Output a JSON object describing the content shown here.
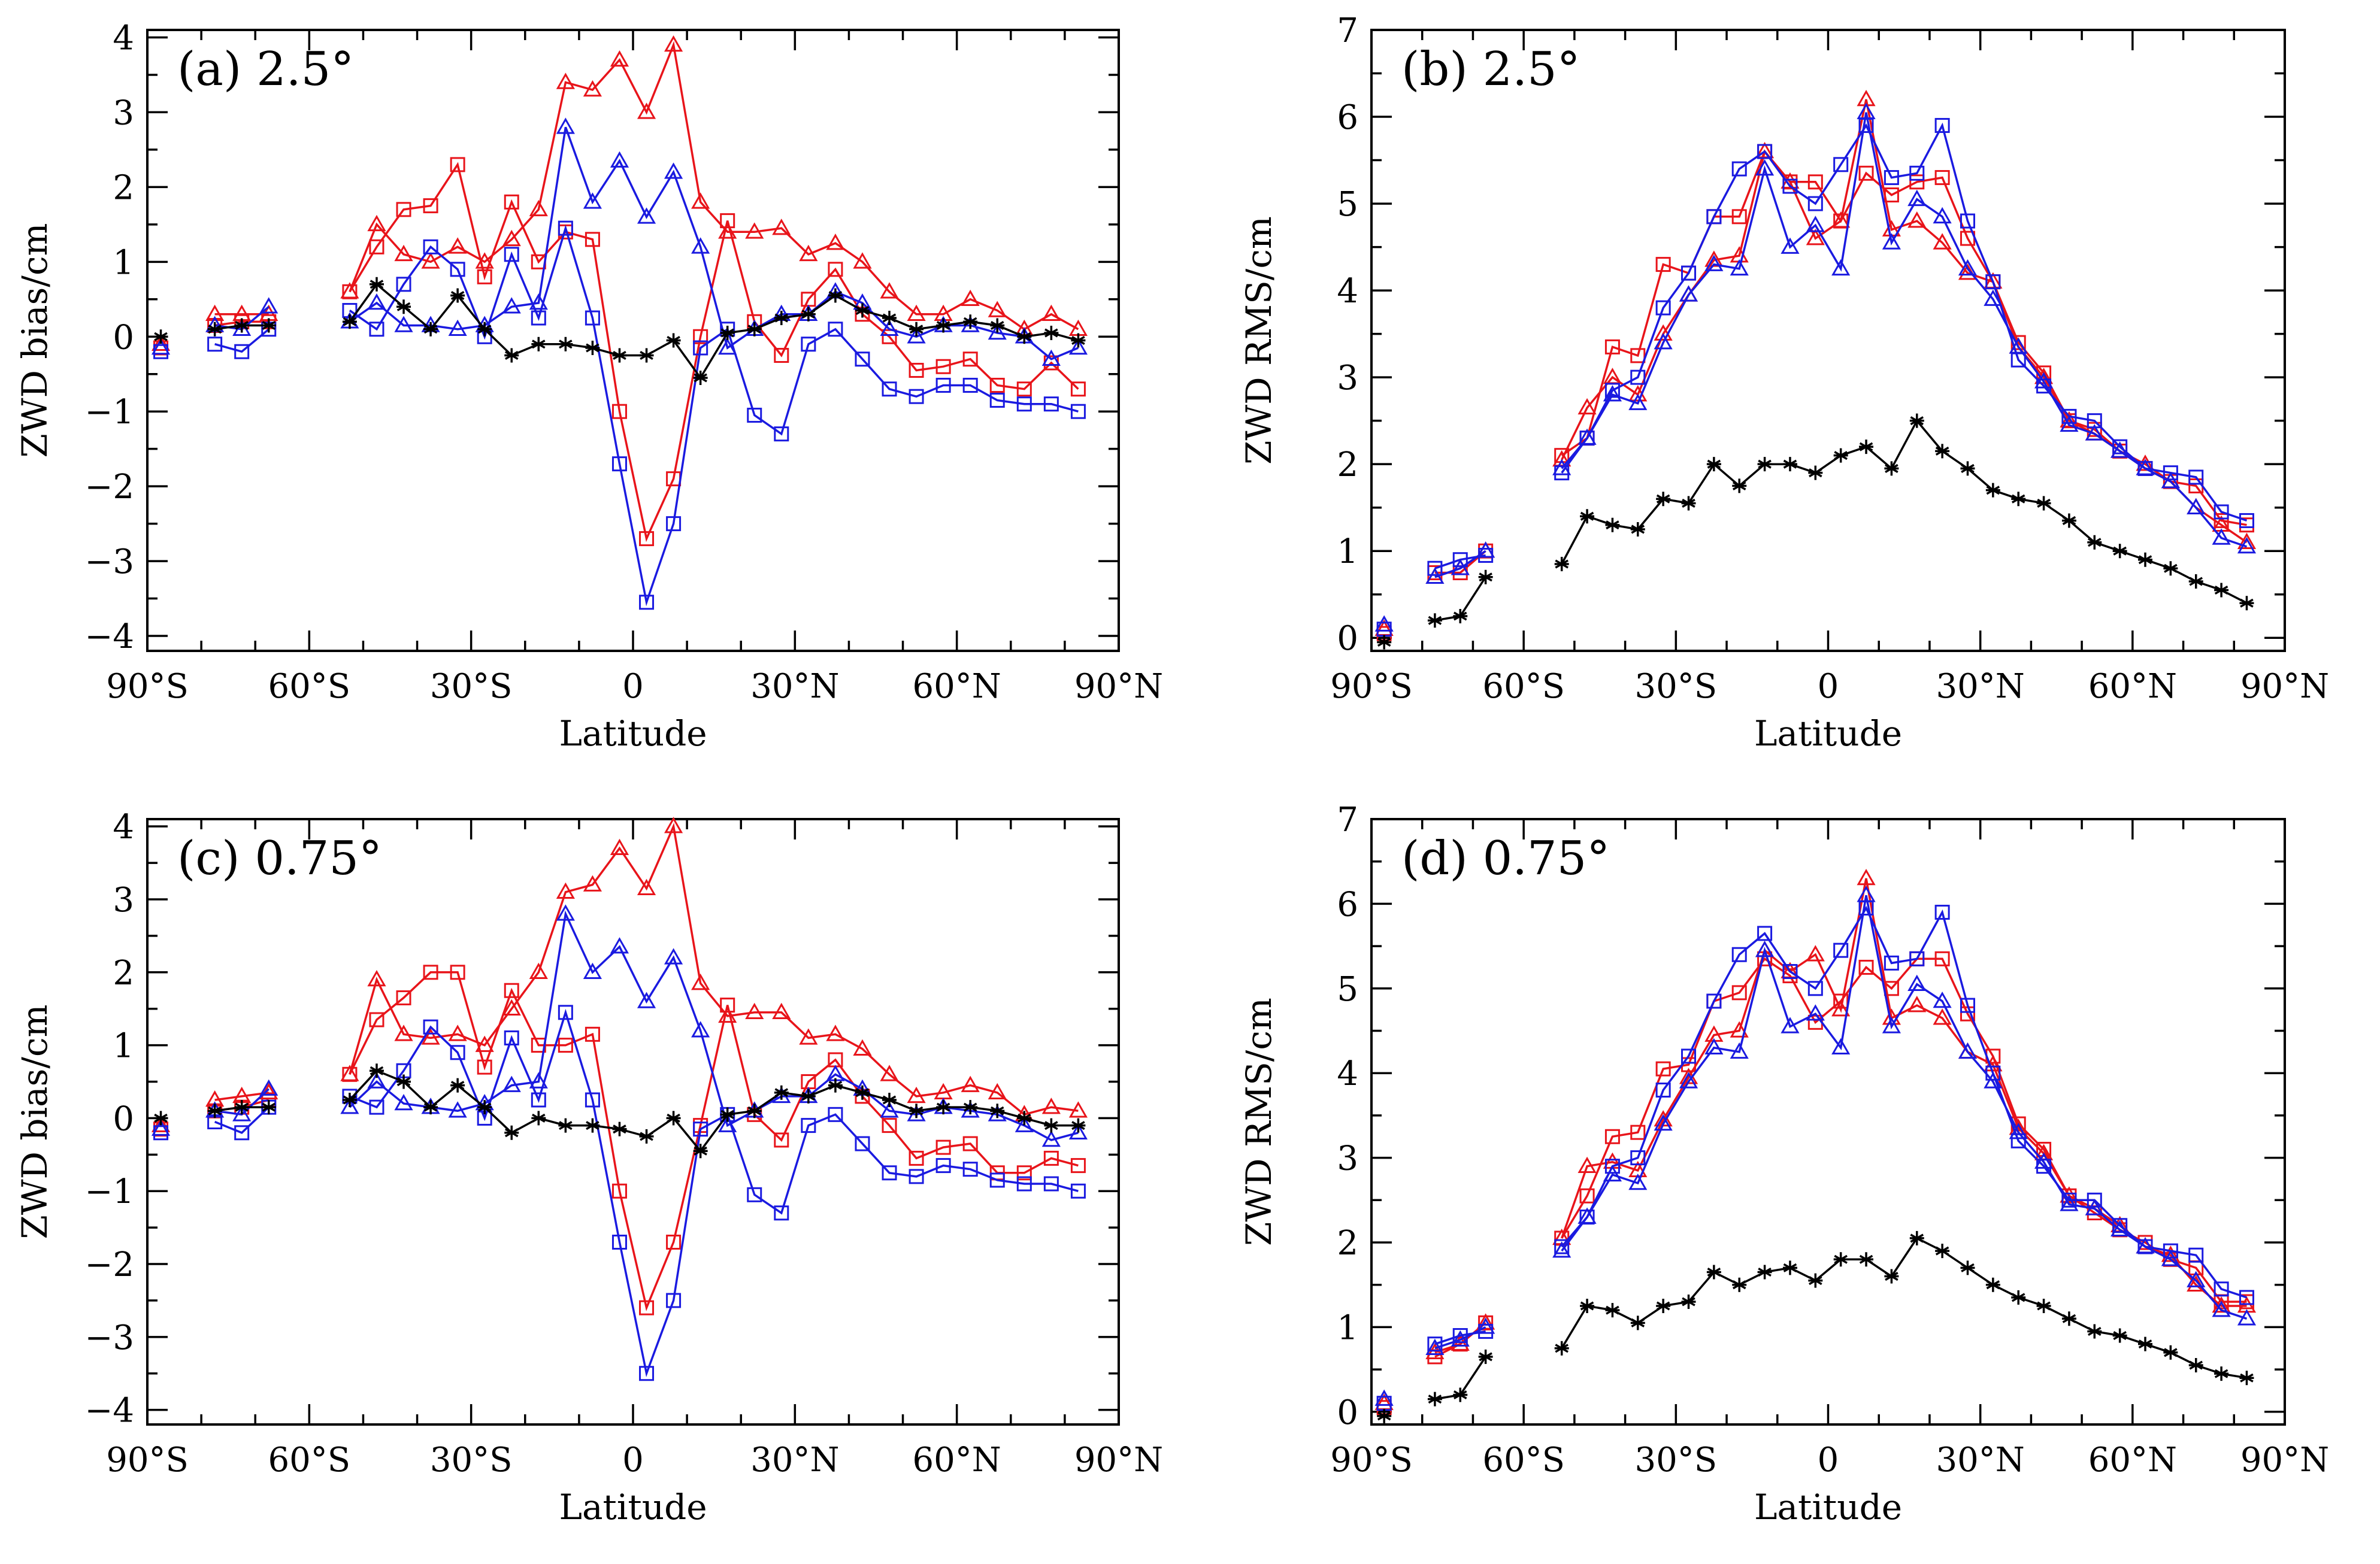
{
  "figure": {
    "colors": {
      "red": "#e8141a",
      "blue": "#1a1ae0",
      "black": "#000000"
    }
  },
  "chart_data": [
    {
      "id": "a",
      "type": "line",
      "title": "(a) 2.5°",
      "xlabel": "Latitude",
      "ylabel": "ZWD bias/cm",
      "xlim": [
        -90,
        90
      ],
      "ylim": [
        -4.2,
        4.1
      ],
      "xticks": [
        -90,
        -60,
        -30,
        0,
        30,
        60,
        90
      ],
      "xtick_labels": [
        "90°S",
        "60°S",
        "30°S",
        "0",
        "30°N",
        "60°N",
        "90°N"
      ],
      "yticks": [
        -4,
        -3,
        -2,
        -1,
        0,
        1,
        2,
        3,
        4
      ],
      "ytick_labels": [
        "−4",
        "−3",
        "−2",
        "−1",
        "0",
        "1",
        "2",
        "3",
        "4"
      ],
      "x": [
        -87.5,
        -77.5,
        -72.5,
        -67.5,
        -52.5,
        -47.5,
        -42.5,
        -37.5,
        -32.5,
        -27.5,
        -22.5,
        -17.5,
        -12.5,
        -7.5,
        -2.5,
        2.5,
        7.5,
        12.5,
        17.5,
        22.5,
        27.5,
        32.5,
        37.5,
        42.5,
        47.5,
        52.5,
        57.5,
        62.5,
        67.5,
        72.5,
        77.5,
        82.5
      ],
      "series": [
        {
          "name": "red-triangle",
          "color": "red",
          "marker": "triangle",
          "values": [
            -0.1,
            0.3,
            0.3,
            0.3,
            0.6,
            1.5,
            1.1,
            1.0,
            1.2,
            1.0,
            1.3,
            1.7,
            3.4,
            3.3,
            3.7,
            3.0,
            3.9,
            1.8,
            1.4,
            1.4,
            1.45,
            1.1,
            1.25,
            1.0,
            0.6,
            0.3,
            0.3,
            0.5,
            0.35,
            0.1,
            0.3,
            0.1
          ]
        },
        {
          "name": "red-square",
          "color": "red",
          "marker": "square",
          "values": [
            -0.15,
            0.15,
            0.2,
            0.2,
            0.6,
            1.2,
            1.7,
            1.75,
            2.3,
            0.8,
            1.8,
            1.0,
            1.4,
            1.3,
            -1.0,
            -2.7,
            -1.9,
            0.0,
            1.55,
            0.2,
            -0.25,
            0.5,
            0.9,
            0.3,
            0.0,
            -0.45,
            -0.4,
            -0.3,
            -0.65,
            -0.7,
            -0.35,
            -0.7
          ]
        },
        {
          "name": "blue-triangle",
          "color": "blue",
          "marker": "triangle",
          "values": [
            -0.15,
            0.15,
            0.1,
            0.4,
            0.2,
            0.45,
            0.15,
            0.15,
            0.1,
            0.15,
            0.4,
            0.45,
            2.8,
            1.8,
            2.35,
            1.6,
            2.2,
            1.2,
            -0.15,
            0.1,
            0.3,
            0.3,
            0.6,
            0.45,
            0.1,
            0.0,
            0.15,
            0.15,
            0.05,
            0.0,
            -0.3,
            -0.15
          ]
        },
        {
          "name": "blue-square",
          "color": "blue",
          "marker": "square",
          "values": [
            -0.2,
            -0.1,
            -0.2,
            0.1,
            0.35,
            0.1,
            0.7,
            1.2,
            0.9,
            0.0,
            1.1,
            0.25,
            1.45,
            0.25,
            -1.7,
            -3.55,
            -2.5,
            -0.15,
            0.1,
            -1.05,
            -1.3,
            -0.1,
            0.1,
            -0.3,
            -0.7,
            -0.8,
            -0.65,
            -0.65,
            -0.85,
            -0.9,
            -0.9,
            -1.0
          ]
        },
        {
          "name": "black-star",
          "color": "black",
          "marker": "star",
          "values": [
            0.0,
            0.1,
            0.15,
            0.15,
            0.2,
            0.7,
            0.4,
            0.1,
            0.55,
            0.1,
            -0.25,
            -0.1,
            -0.1,
            -0.15,
            -0.25,
            -0.25,
            -0.05,
            -0.55,
            0.05,
            0.1,
            0.25,
            0.3,
            0.55,
            0.35,
            0.25,
            0.1,
            0.15,
            0.2,
            0.15,
            0.0,
            0.05,
            -0.05
          ]
        }
      ]
    },
    {
      "id": "b",
      "type": "line",
      "title": "(b) 2.5°",
      "xlabel": "Latitude",
      "ylabel": "ZWD RMS/cm",
      "xlim": [
        -90,
        90
      ],
      "ylim": [
        -0.15,
        7.0
      ],
      "xticks": [
        -90,
        -60,
        -30,
        0,
        30,
        60,
        90
      ],
      "xtick_labels": [
        "90°S",
        "60°S",
        "30°S",
        "0",
        "30°N",
        "60°N",
        "90°N"
      ],
      "yticks": [
        0,
        1,
        2,
        3,
        4,
        5,
        6,
        7
      ],
      "ytick_labels": [
        "0",
        "1",
        "2",
        "3",
        "4",
        "5",
        "6",
        "7"
      ],
      "x": [
        -87.5,
        -77.5,
        -72.5,
        -67.5,
        -52.5,
        -47.5,
        -42.5,
        -37.5,
        -32.5,
        -27.5,
        -22.5,
        -17.5,
        -12.5,
        -7.5,
        -2.5,
        2.5,
        7.5,
        12.5,
        17.5,
        22.5,
        27.5,
        32.5,
        37.5,
        42.5,
        47.5,
        52.5,
        57.5,
        62.5,
        67.5,
        72.5,
        77.5,
        82.5
      ],
      "series": [
        {
          "name": "red-triangle",
          "color": "red",
          "marker": "triangle",
          "values": [
            0.1,
            0.7,
            0.8,
            1.0,
            2.05,
            2.65,
            3.0,
            2.8,
            3.5,
            3.95,
            4.35,
            4.4,
            5.6,
            5.25,
            4.6,
            4.8,
            6.2,
            4.7,
            4.8,
            4.55,
            4.2,
            4.1,
            3.35,
            3.0,
            2.5,
            2.35,
            2.15,
            2.0,
            1.8,
            1.5,
            1.3,
            1.1
          ]
        },
        {
          "name": "red-square",
          "color": "red",
          "marker": "square",
          "values": [
            0.05,
            0.75,
            0.75,
            1.0,
            2.1,
            2.3,
            3.35,
            3.25,
            4.3,
            4.2,
            4.85,
            4.85,
            5.6,
            5.25,
            5.25,
            4.8,
            5.35,
            5.1,
            5.25,
            5.3,
            4.6,
            4.1,
            3.4,
            3.05,
            2.5,
            2.4,
            2.15,
            1.95,
            1.8,
            1.75,
            1.35,
            1.3
          ]
        },
        {
          "name": "blue-triangle",
          "color": "blue",
          "marker": "triangle",
          "values": [
            0.15,
            0.7,
            0.8,
            1.0,
            1.95,
            2.3,
            2.8,
            2.7,
            3.4,
            3.95,
            4.3,
            4.25,
            5.4,
            4.5,
            4.75,
            4.25,
            6.05,
            4.55,
            5.05,
            4.85,
            4.25,
            3.9,
            3.35,
            2.95,
            2.45,
            2.35,
            2.15,
            1.95,
            1.8,
            1.5,
            1.15,
            1.05
          ]
        },
        {
          "name": "blue-square",
          "color": "blue",
          "marker": "square",
          "values": [
            0.1,
            0.8,
            0.9,
            0.95,
            1.9,
            2.3,
            2.85,
            3.0,
            3.8,
            4.2,
            4.85,
            5.4,
            5.6,
            5.2,
            5.0,
            5.45,
            5.9,
            5.3,
            5.35,
            5.9,
            4.8,
            4.1,
            3.2,
            2.9,
            2.55,
            2.5,
            2.2,
            1.95,
            1.9,
            1.85,
            1.45,
            1.35
          ]
        },
        {
          "name": "black-star",
          "color": "black",
          "marker": "star",
          "values": [
            -0.05,
            0.2,
            0.25,
            0.7,
            0.85,
            1.4,
            1.3,
            1.25,
            1.6,
            1.55,
            2.0,
            1.75,
            2.0,
            2.0,
            1.9,
            2.1,
            2.2,
            1.95,
            2.5,
            2.15,
            1.95,
            1.7,
            1.6,
            1.55,
            1.35,
            1.1,
            1.0,
            0.9,
            0.8,
            0.65,
            0.55,
            0.4
          ]
        }
      ]
    },
    {
      "id": "c",
      "type": "line",
      "title": "(c) 0.75°",
      "xlabel": "Latitude",
      "ylabel": "ZWD bias/cm",
      "xlim": [
        -90,
        90
      ],
      "ylim": [
        -4.2,
        4.1
      ],
      "xticks": [
        -90,
        -60,
        -30,
        0,
        30,
        60,
        90
      ],
      "xtick_labels": [
        "90°S",
        "60°S",
        "30°S",
        "0",
        "30°N",
        "60°N",
        "90°N"
      ],
      "yticks": [
        -4,
        -3,
        -2,
        -1,
        0,
        1,
        2,
        3,
        4
      ],
      "ytick_labels": [
        "−4",
        "−3",
        "−2",
        "−1",
        "0",
        "1",
        "2",
        "3",
        "4"
      ],
      "x": [
        -87.5,
        -77.5,
        -72.5,
        -67.5,
        -52.5,
        -47.5,
        -42.5,
        -37.5,
        -32.5,
        -27.5,
        -22.5,
        -17.5,
        -12.5,
        -7.5,
        -2.5,
        2.5,
        7.5,
        12.5,
        17.5,
        22.5,
        27.5,
        32.5,
        37.5,
        42.5,
        47.5,
        52.5,
        57.5,
        62.5,
        67.5,
        72.5,
        77.5,
        82.5
      ],
      "series": [
        {
          "name": "red-triangle",
          "color": "red",
          "marker": "triangle",
          "values": [
            -0.1,
            0.25,
            0.3,
            0.35,
            0.6,
            1.9,
            1.15,
            1.1,
            1.15,
            1.0,
            1.5,
            2.0,
            3.1,
            3.2,
            3.7,
            3.15,
            4.0,
            1.85,
            1.4,
            1.45,
            1.45,
            1.1,
            1.15,
            0.95,
            0.6,
            0.3,
            0.35,
            0.45,
            0.35,
            0.05,
            0.15,
            0.1
          ]
        },
        {
          "name": "red-square",
          "color": "red",
          "marker": "square",
          "values": [
            -0.15,
            0.1,
            0.15,
            0.25,
            0.6,
            1.35,
            1.65,
            2.0,
            2.0,
            0.7,
            1.75,
            1.0,
            1.0,
            1.15,
            -1.0,
            -2.6,
            -1.7,
            -0.1,
            1.55,
            0.05,
            -0.3,
            0.5,
            0.8,
            0.3,
            -0.1,
            -0.55,
            -0.4,
            -0.35,
            -0.75,
            -0.75,
            -0.55,
            -0.65
          ]
        },
        {
          "name": "blue-triangle",
          "color": "blue",
          "marker": "triangle",
          "values": [
            -0.15,
            0.1,
            0.05,
            0.4,
            0.15,
            0.5,
            0.2,
            0.15,
            0.1,
            0.2,
            0.45,
            0.5,
            2.8,
            2.0,
            2.35,
            1.6,
            2.2,
            1.2,
            -0.1,
            0.1,
            0.3,
            0.3,
            0.6,
            0.4,
            0.1,
            0.05,
            0.15,
            0.1,
            0.05,
            -0.1,
            -0.3,
            -0.2
          ]
        },
        {
          "name": "blue-square",
          "color": "blue",
          "marker": "square",
          "values": [
            -0.2,
            -0.05,
            -0.2,
            0.15,
            0.3,
            0.15,
            0.65,
            1.25,
            0.9,
            0.0,
            1.1,
            0.25,
            1.45,
            0.25,
            -1.7,
            -3.5,
            -2.5,
            -0.15,
            0.05,
            -1.05,
            -1.3,
            -0.1,
            0.05,
            -0.35,
            -0.75,
            -0.8,
            -0.65,
            -0.7,
            -0.85,
            -0.9,
            -0.9,
            -1.0
          ]
        },
        {
          "name": "black-star",
          "color": "black",
          "marker": "star",
          "values": [
            0.0,
            0.1,
            0.15,
            0.15,
            0.25,
            0.65,
            0.5,
            0.15,
            0.45,
            0.15,
            -0.2,
            0.0,
            -0.1,
            -0.1,
            -0.15,
            -0.25,
            0.0,
            -0.45,
            0.05,
            0.1,
            0.35,
            0.3,
            0.45,
            0.35,
            0.25,
            0.1,
            0.15,
            0.15,
            0.1,
            0.0,
            -0.1,
            -0.1
          ]
        }
      ]
    },
    {
      "id": "d",
      "type": "line",
      "title": "(d) 0.75°",
      "xlabel": "Latitude",
      "ylabel": "ZWD RMS/cm",
      "xlim": [
        -90,
        90
      ],
      "ylim": [
        -0.15,
        7.0
      ],
      "xticks": [
        -90,
        -60,
        -30,
        0,
        30,
        60,
        90
      ],
      "xtick_labels": [
        "90°S",
        "60°S",
        "30°S",
        "0",
        "30°N",
        "60°N",
        "90°N"
      ],
      "yticks": [
        0,
        1,
        2,
        3,
        4,
        5,
        6,
        7
      ],
      "ytick_labels": [
        "0",
        "1",
        "2",
        "3",
        "4",
        "5",
        "6",
        "7"
      ],
      "x": [
        -87.5,
        -77.5,
        -72.5,
        -67.5,
        -52.5,
        -47.5,
        -42.5,
        -37.5,
        -32.5,
        -27.5,
        -22.5,
        -17.5,
        -12.5,
        -7.5,
        -2.5,
        2.5,
        7.5,
        12.5,
        17.5,
        22.5,
        27.5,
        32.5,
        37.5,
        42.5,
        47.5,
        52.5,
        57.5,
        62.5,
        67.5,
        72.5,
        77.5,
        82.5
      ],
      "series": [
        {
          "name": "red-triangle",
          "color": "red",
          "marker": "triangle",
          "values": [
            0.1,
            0.7,
            0.8,
            1.05,
            2.05,
            2.9,
            2.95,
            2.85,
            3.45,
            3.95,
            4.45,
            4.5,
            5.45,
            5.2,
            5.4,
            4.75,
            6.3,
            4.65,
            4.8,
            4.65,
            4.25,
            4.1,
            3.35,
            3.05,
            2.55,
            2.4,
            2.2,
            1.95,
            1.85,
            1.5,
            1.25,
            1.25
          ]
        },
        {
          "name": "red-square",
          "color": "red",
          "marker": "square",
          "values": [
            0.05,
            0.65,
            0.8,
            1.05,
            2.05,
            2.55,
            3.25,
            3.3,
            4.05,
            4.1,
            4.85,
            4.95,
            5.35,
            5.15,
            4.6,
            4.85,
            5.25,
            5.0,
            5.35,
            5.35,
            4.7,
            4.2,
            3.4,
            3.1,
            2.55,
            2.35,
            2.15,
            2.0,
            1.8,
            1.7,
            1.3,
            1.3
          ]
        },
        {
          "name": "blue-triangle",
          "color": "blue",
          "marker": "triangle",
          "values": [
            0.15,
            0.75,
            0.85,
            1.0,
            1.9,
            2.3,
            2.8,
            2.7,
            3.4,
            3.9,
            4.3,
            4.25,
            5.45,
            4.55,
            4.7,
            4.3,
            6.1,
            4.55,
            5.05,
            4.85,
            4.25,
            3.9,
            3.3,
            2.95,
            2.45,
            2.4,
            2.15,
            1.95,
            1.8,
            1.55,
            1.2,
            1.1
          ]
        },
        {
          "name": "blue-square",
          "color": "blue",
          "marker": "square",
          "values": [
            0.1,
            0.8,
            0.9,
            0.95,
            1.95,
            2.3,
            2.9,
            3.0,
            3.8,
            4.2,
            4.85,
            5.4,
            5.65,
            5.2,
            5.0,
            5.45,
            5.95,
            5.3,
            5.35,
            5.9,
            4.8,
            4.0,
            3.2,
            2.9,
            2.5,
            2.5,
            2.2,
            1.95,
            1.9,
            1.85,
            1.45,
            1.35
          ]
        },
        {
          "name": "black-star",
          "color": "black",
          "marker": "star",
          "values": [
            -0.05,
            0.15,
            0.2,
            0.65,
            0.75,
            1.25,
            1.2,
            1.05,
            1.25,
            1.3,
            1.65,
            1.5,
            1.65,
            1.7,
            1.55,
            1.8,
            1.8,
            1.6,
            2.05,
            1.9,
            1.7,
            1.5,
            1.35,
            1.25,
            1.1,
            0.95,
            0.9,
            0.8,
            0.7,
            0.55,
            0.45,
            0.4
          ]
        }
      ]
    }
  ]
}
